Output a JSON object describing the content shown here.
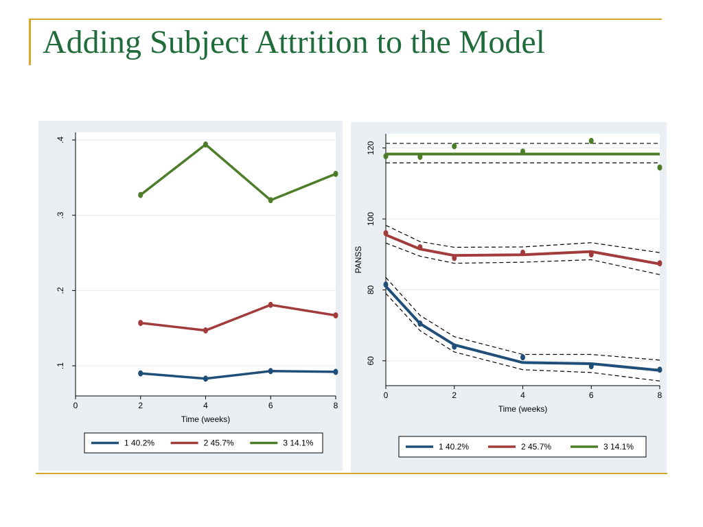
{
  "slide": {
    "title": "Adding Subject Attrition to the Model",
    "accent_color": "#d4a72c",
    "title_color": "#1f6b3a"
  },
  "chart_data": [
    {
      "type": "line",
      "x": [
        2,
        4,
        6,
        8
      ],
      "xticks": [
        "0",
        "2",
        "4",
        "6",
        "8"
      ],
      "yticks": [
        ".1",
        ".2",
        ".3",
        ".4"
      ],
      "xlabel": "Time (weeks)",
      "ylabel": "",
      "xlim": [
        0,
        8
      ],
      "ylim": [
        0.06,
        0.41
      ],
      "grid": true,
      "legend_position": "bottom",
      "series": [
        {
          "name": "1  40.2%",
          "color": "#1f4e79",
          "values": [
            0.09,
            0.083,
            0.093,
            0.092
          ]
        },
        {
          "name": "2  45.7%",
          "color": "#a23b3b",
          "values": [
            0.157,
            0.147,
            0.181,
            0.167
          ]
        },
        {
          "name": "3  14.1%",
          "color": "#4e7d2a",
          "values": [
            0.327,
            0.394,
            0.32,
            0.355
          ]
        }
      ]
    },
    {
      "type": "line",
      "xticks": [
        "0",
        "2",
        "4",
        "6",
        "8"
      ],
      "yticks": [
        "60",
        "80",
        "100",
        "120"
      ],
      "xlabel": "Time (weeks)",
      "ylabel": "PANSS",
      "xlim": [
        0,
        8
      ],
      "ylim": [
        53,
        124
      ],
      "grid": true,
      "legend_position": "bottom",
      "series": [
        {
          "name": "1  40.2%",
          "color": "#1f4e79",
          "x": [
            0,
            1,
            2,
            4,
            6,
            8
          ],
          "fitted": [
            81,
            70.5,
            64.5,
            59.5,
            59.2,
            57.3
          ],
          "ci_upper": [
            83.5,
            72.8,
            66.8,
            61.8,
            61.8,
            60.2
          ],
          "ci_lower": [
            79,
            68.5,
            62.5,
            57.5,
            56.7,
            54.3
          ],
          "observed_x": [
            0,
            1,
            2,
            4,
            6,
            8
          ],
          "observed": [
            81.5,
            70.5,
            64,
            61,
            58.5,
            57.5
          ]
        },
        {
          "name": "2  45.7%",
          "color": "#a23b3b",
          "x": [
            0,
            1,
            2,
            4,
            6,
            8
          ],
          "fitted": [
            95.5,
            91.5,
            89.7,
            89.9,
            90.8,
            87.3
          ],
          "ci_upper": [
            98.2,
            93.6,
            92,
            92.1,
            93.3,
            90.5
          ],
          "ci_lower": [
            93.2,
            89.5,
            87.5,
            87.8,
            88.5,
            84.3
          ],
          "observed_x": [
            0,
            1,
            2,
            4,
            6,
            8
          ],
          "observed": [
            96,
            92,
            89,
            90.5,
            90,
            87.5
          ]
        },
        {
          "name": "3  14.1%",
          "color": "#4e7d2a",
          "x": [
            0,
            8
          ],
          "fitted": [
            118.3,
            118.3
          ],
          "ci_upper": [
            121.3,
            121.3
          ],
          "ci_lower": [
            115.8,
            115.8
          ],
          "observed_x": [
            0,
            1,
            2,
            4,
            6,
            8
          ],
          "observed": [
            117.7,
            117.5,
            120.5,
            119,
            122,
            114.5
          ]
        }
      ]
    }
  ]
}
